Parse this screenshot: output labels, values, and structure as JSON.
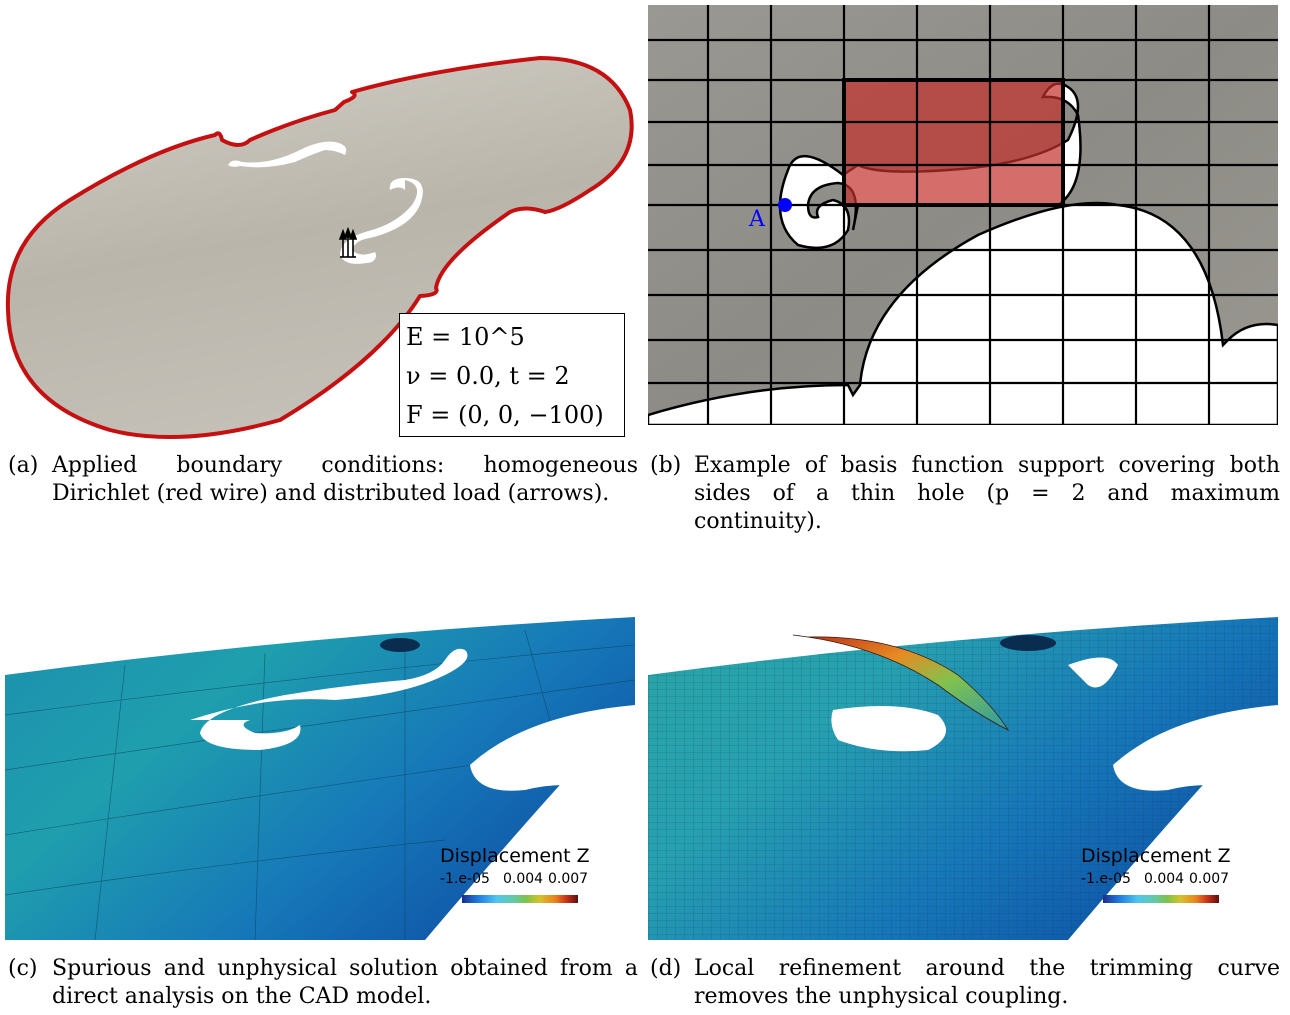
{
  "panel_a": {
    "caption_tag": "(a)",
    "caption_text": "Applied boundary conditions: homogeneous Dirichlet (red wire) and distributed load (arrows).",
    "params": {
      "line1": "E = 10^5",
      "line2": "ν = 0.0, t = 2",
      "line3": "F = (0, 0, −100)"
    },
    "colors": {
      "surface": "#bbb7ad",
      "dirichlet_wire": "#c41010"
    }
  },
  "panel_b": {
    "caption_tag": "(b)",
    "caption_text": "Example of basis function support covering both sides of a thin hole (p = 2 and maximum continuity).",
    "point_label": "A",
    "colors": {
      "background": "#8e8c87",
      "support": "#c3302c",
      "point": "#0000ff"
    }
  },
  "panel_c": {
    "caption_tag": "(c)",
    "caption_text": "Spurious and unphysical solution obtained from a direct analysis on the CAD model.",
    "legend": {
      "title": "Displacement Z",
      "ticks": [
        "-1.e-05",
        "0.004",
        "0.007"
      ]
    }
  },
  "panel_d": {
    "caption_tag": "(d)",
    "caption_text": "Local refinement around the trimming curve removes the unphysical coupling.",
    "legend": {
      "title": "Displacement Z",
      "ticks": [
        "-1.e-05",
        "0.004",
        "0.007"
      ]
    }
  }
}
